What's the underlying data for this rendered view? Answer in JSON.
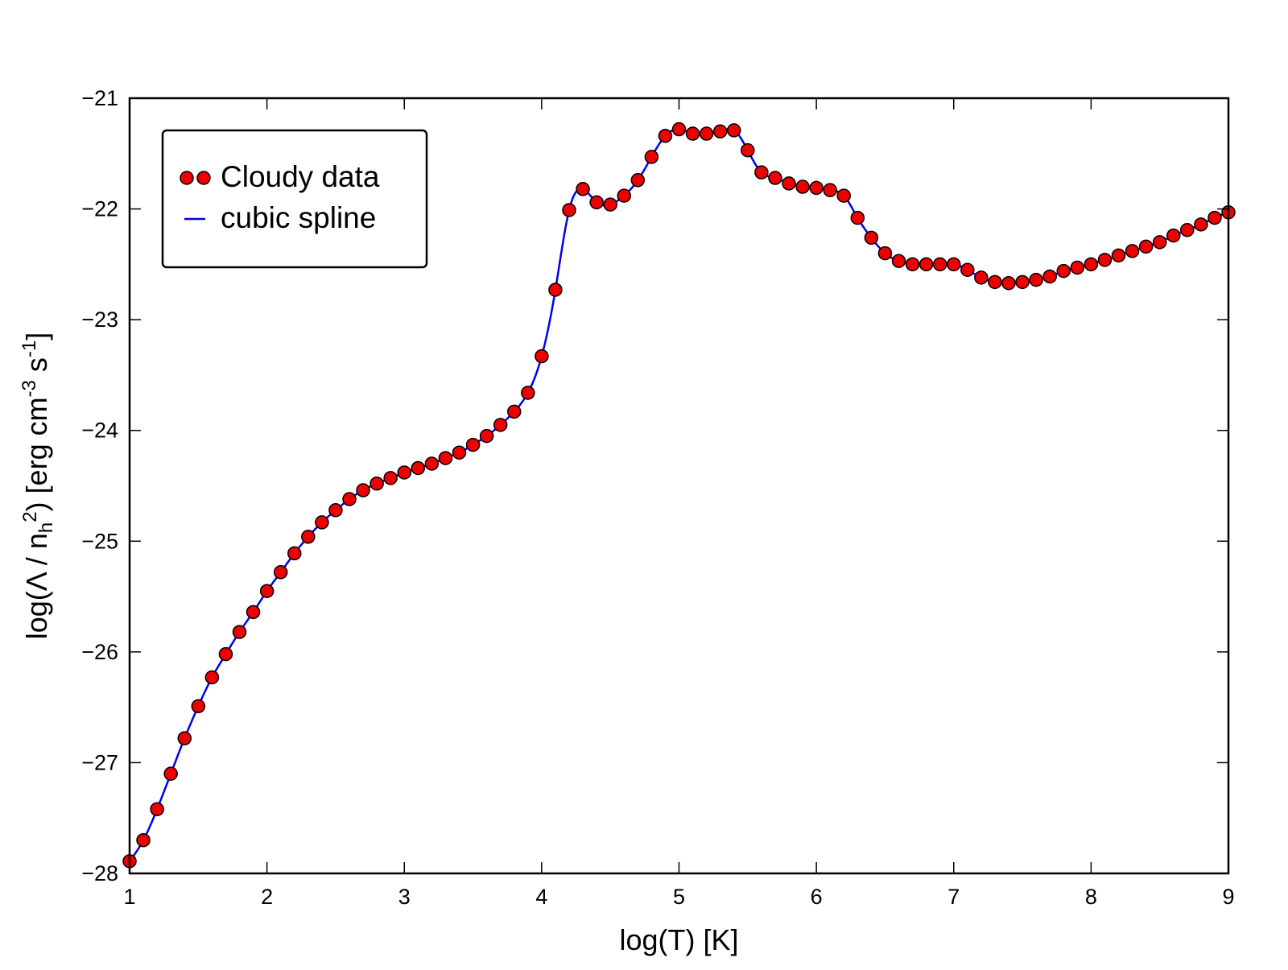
{
  "chart_data": {
    "type": "line",
    "title": "",
    "xlabel": "log(T) [K]",
    "ylabel": {
      "base": "log(Λ / n",
      "sub": "h",
      "sup1": "2",
      "mid": ") [erg cm",
      "sup2": "-3",
      "mid2": " s",
      "sup3": "-1",
      "end": "]"
    },
    "xlim": [
      1,
      9
    ],
    "ylim": [
      -28,
      -21
    ],
    "xticks": [
      1,
      2,
      3,
      4,
      5,
      6,
      7,
      8,
      9
    ],
    "xtick_labels": [
      "1",
      "2",
      "3",
      "4",
      "5",
      "6",
      "7",
      "8",
      "9"
    ],
    "yticks": [
      -21,
      -22,
      -23,
      -24,
      -25,
      -26,
      -27,
      -28
    ],
    "ytick_labels": [
      "−21",
      "−22",
      "−23",
      "−24",
      "−25",
      "−26",
      "−27",
      "−28"
    ],
    "grid": false,
    "legend_position": "top-left",
    "series": [
      {
        "name": "Cloudy data",
        "kind": "scatter",
        "marker_color": "#ee0000",
        "marker_edge": "#000000",
        "x": [
          1.0,
          1.1,
          1.2,
          1.3,
          1.4,
          1.5,
          1.6,
          1.7,
          1.8,
          1.9,
          2.0,
          2.1,
          2.2,
          2.3,
          2.4,
          2.5,
          2.6,
          2.7,
          2.8,
          2.9,
          3.0,
          3.1,
          3.2,
          3.3,
          3.4,
          3.5,
          3.6,
          3.7,
          3.8,
          3.9,
          4.0,
          4.1,
          4.2,
          4.3,
          4.4,
          4.5,
          4.6,
          4.7,
          4.8,
          4.9,
          5.0,
          5.1,
          5.2,
          5.3,
          5.4,
          5.5,
          5.6,
          5.7,
          5.8,
          5.9,
          6.0,
          6.1,
          6.2,
          6.3,
          6.4,
          6.5,
          6.6,
          6.7,
          6.8,
          6.9,
          7.0,
          7.1,
          7.2,
          7.3,
          7.4,
          7.5,
          7.6,
          7.7,
          7.8,
          7.9,
          8.0,
          8.1,
          8.2,
          8.3,
          8.4,
          8.5,
          8.6,
          8.7,
          8.8,
          8.9,
          9.0
        ],
        "y": [
          -27.89,
          -27.7,
          -27.42,
          -27.1,
          -26.78,
          -26.49,
          -26.23,
          -26.02,
          -25.82,
          -25.64,
          -25.45,
          -25.28,
          -25.11,
          -24.96,
          -24.83,
          -24.72,
          -24.62,
          -24.54,
          -24.48,
          -24.43,
          -24.38,
          -24.34,
          -24.3,
          -24.25,
          -24.2,
          -24.13,
          -24.05,
          -23.95,
          -23.83,
          -23.66,
          -23.33,
          -22.73,
          -22.01,
          -21.82,
          -21.94,
          -21.96,
          -21.88,
          -21.74,
          -21.53,
          -21.34,
          -21.28,
          -21.32,
          -21.32,
          -21.3,
          -21.29,
          -21.47,
          -21.67,
          -21.72,
          -21.77,
          -21.8,
          -21.81,
          -21.83,
          -21.88,
          -22.08,
          -22.26,
          -22.4,
          -22.47,
          -22.5,
          -22.5,
          -22.5,
          -22.5,
          -22.55,
          -22.62,
          -22.66,
          -22.67,
          -22.66,
          -22.64,
          -22.61,
          -22.56,
          -22.53,
          -22.5,
          -22.46,
          -22.42,
          -22.38,
          -22.34,
          -22.3,
          -22.24,
          -22.19,
          -22.14,
          -22.08,
          -22.03
        ]
      },
      {
        "name": "cubic spline",
        "kind": "line",
        "color": "#0000ee"
      }
    ]
  }
}
